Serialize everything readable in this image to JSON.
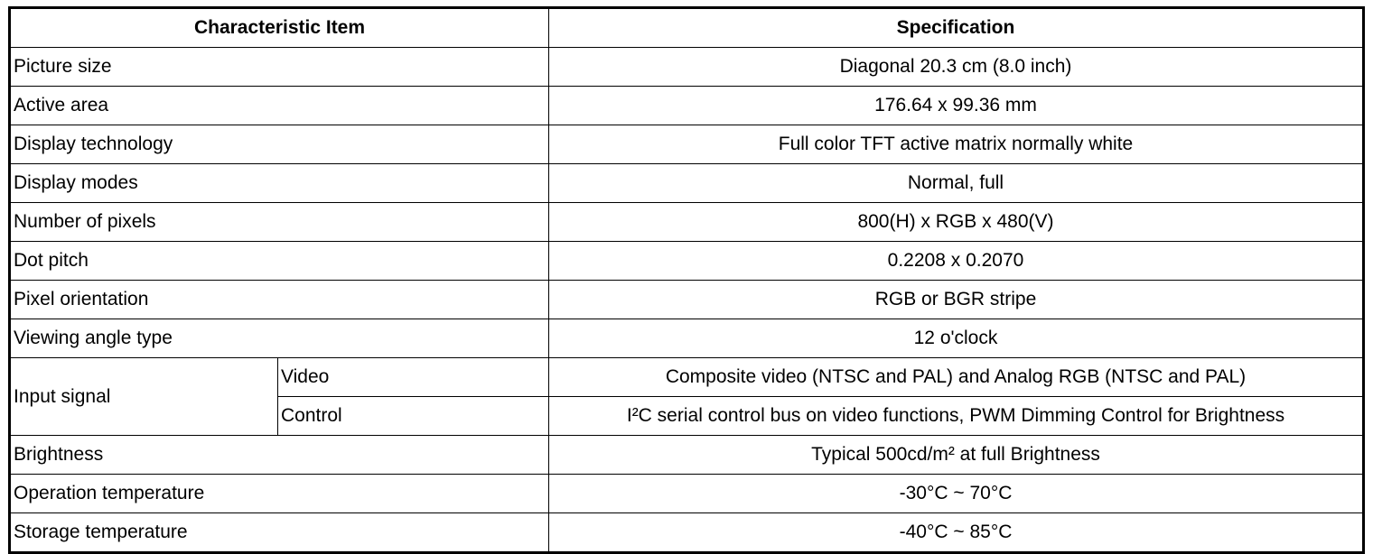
{
  "table": {
    "headers": [
      "Characteristic Item",
      "Specification"
    ],
    "rows": [
      {
        "item": "Picture size",
        "spec": "Diagonal 20.3 cm (8.0 inch)"
      },
      {
        "item": "Active area",
        "spec": "176.64 x 99.36 mm"
      },
      {
        "item": "Display technology",
        "spec": "Full color TFT active matrix normally white"
      },
      {
        "item": "Display modes",
        "spec": "Normal, full"
      },
      {
        "item": "Number of pixels",
        "spec": "800(H) x RGB x 480(V)"
      },
      {
        "item": "Dot pitch",
        "spec": "0.2208 x 0.2070"
      },
      {
        "item": "Pixel orientation",
        "spec": "RGB or BGR stripe"
      },
      {
        "item": "Viewing angle type",
        "spec": "12 o'clock"
      }
    ],
    "input_signal": {
      "item": "Input signal",
      "sub": [
        {
          "item": "Video",
          "spec": "Composite video (NTSC and PAL) and Analog RGB (NTSC and PAL)"
        },
        {
          "item": "Control",
          "spec": "I²C serial control bus on video functions, PWM Dimming Control for Brightness"
        }
      ]
    },
    "rows_after": [
      {
        "item": "Brightness",
        "spec": "Typical 500cd/m² at full Brightness"
      },
      {
        "item": "Operation temperature",
        "spec": "-30°C ~ 70°C"
      },
      {
        "item": "Storage temperature",
        "spec": "-40°C ~ 85°C"
      }
    ]
  }
}
